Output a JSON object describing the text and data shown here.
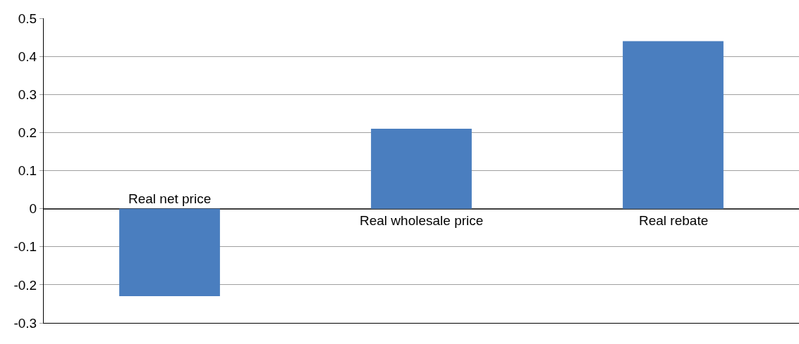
{
  "chart_data": {
    "type": "bar",
    "categories": [
      "Real net price",
      "Real wholesale price",
      "Real rebate"
    ],
    "values": [
      -0.23,
      0.21,
      0.44
    ],
    "color": "#4a7ebf",
    "ylim": [
      -0.3,
      0.5
    ],
    "yticks": [
      -0.3,
      -0.2,
      -0.1,
      0,
      0.1,
      0.2,
      0.3,
      0.4,
      0.5
    ],
    "grid": "y"
  }
}
